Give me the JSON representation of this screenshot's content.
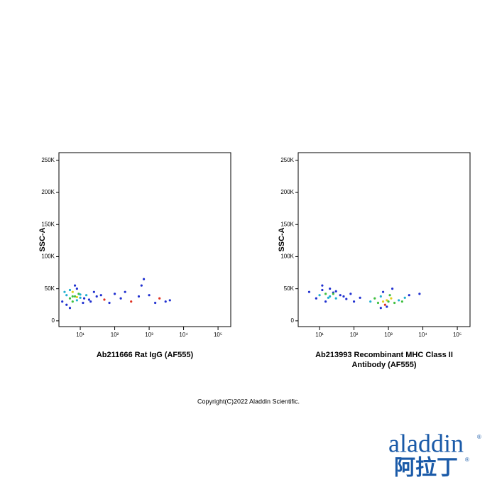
{
  "chart_data": [
    {
      "type": "scatter",
      "y_label": "SSC-A",
      "x_label": [
        "Ab211666 Rat IgG (AF555)"
      ],
      "log_x": true,
      "xlim": [
        2.4,
        234000
      ],
      "ylim": [
        -9000,
        262000
      ],
      "xticks": [
        {
          "value": 10,
          "label": "10¹"
        },
        {
          "value": 100,
          "label": "10²"
        },
        {
          "value": 1000,
          "label": "10³"
        },
        {
          "value": 10000,
          "label": "10⁴"
        },
        {
          "value": 100000,
          "label": "10⁵"
        }
      ],
      "yticks": [
        0,
        {
          "value": 50000,
          "label": "50K"
        },
        {
          "value": 100000,
          "label": "100K"
        },
        {
          "value": 150000,
          "label": "150K"
        },
        {
          "value": 200000,
          "label": "200K"
        },
        {
          "value": 250000,
          "label": "250K"
        }
      ],
      "x": [
        3,
        4,
        5,
        6,
        7,
        8,
        9,
        10,
        12,
        15,
        18,
        4,
        5,
        6,
        7,
        8,
        3.5,
        5,
        6,
        8,
        10,
        13,
        20,
        25,
        30,
        40,
        50,
        70,
        100,
        150,
        200,
        300,
        500,
        700,
        1000,
        1500,
        2000,
        3000,
        4000,
        600
      ],
      "y": [
        30000,
        40000,
        35000,
        45000,
        38000,
        32000,
        42000,
        36000,
        28000,
        40000,
        33000,
        25000,
        48000,
        30000,
        55000,
        37000,
        45000,
        20000,
        38000,
        50000,
        41000,
        35000,
        30000,
        45000,
        38000,
        40000,
        33000,
        28000,
        42000,
        35000,
        45000,
        30000,
        38000,
        65000,
        40000,
        28000,
        35000,
        30000,
        32000,
        55000
      ],
      "point_colors": [
        "#2030d0",
        "#20b0d0",
        "#40c040",
        "#e0d020",
        "#40c040",
        "#20b0d0",
        "#40c040",
        "#20b0d0",
        "#2030d0",
        "#20b0d0",
        "#2030d0",
        "#2030d0",
        "#20b0d0",
        "#40c040",
        "#2030d0",
        "#e0d020",
        "#20b0d0",
        "#2030d0",
        "#40c040",
        "#2030d0",
        "#20b0d0",
        "#2030d0",
        "#2030d0",
        "#2030d0",
        "#2030d0",
        "#2030d0",
        "#e03020",
        "#2030d0",
        "#2030d0",
        "#2030d0",
        "#2030d0",
        "#e03020",
        "#2030d0",
        "#2030d0",
        "#2030d0",
        "#2030d0",
        "#e03020",
        "#2030d0",
        "#2030d0",
        "#2030d0"
      ]
    },
    {
      "type": "scatter",
      "y_label": "SSC-A",
      "x_label": [
        "Ab213993 Recombinant MHC Class II",
        "Antibody (AF555)"
      ],
      "log_x": true,
      "xlim": [
        2.4,
        234000
      ],
      "ylim": [
        -9000,
        262000
      ],
      "xticks": [
        {
          "value": 10,
          "label": "10¹"
        },
        {
          "value": 100,
          "label": "10²"
        },
        {
          "value": 1000,
          "label": "10³"
        },
        {
          "value": 10000,
          "label": "10⁴"
        },
        {
          "value": 100000,
          "label": "10⁵"
        }
      ],
      "yticks": [
        0,
        {
          "value": 50000,
          "label": "50K"
        },
        {
          "value": 100000,
          "label": "100K"
        },
        {
          "value": 150000,
          "label": "150K"
        },
        {
          "value": 200000,
          "label": "200K"
        },
        {
          "value": 250000,
          "label": "250K"
        }
      ],
      "x": [
        5,
        8,
        10,
        12,
        15,
        20,
        25,
        30,
        40,
        15,
        20,
        25,
        18,
        12,
        30,
        50,
        60,
        80,
        100,
        150,
        300,
        400,
        500,
        600,
        700,
        800,
        900,
        1000,
        1200,
        1500,
        2000,
        2500,
        3000,
        700,
        900,
        1100,
        600,
        1300,
        4000,
        8000
      ],
      "y": [
        45000,
        35000,
        40000,
        48000,
        42000,
        38000,
        44000,
        35000,
        40000,
        30000,
        50000,
        42000,
        36000,
        55000,
        46000,
        38000,
        34000,
        42000,
        30000,
        36000,
        30000,
        35000,
        28000,
        38000,
        30000,
        25000,
        32000,
        30000,
        35000,
        28000,
        32000,
        30000,
        36000,
        45000,
        22000,
        40000,
        20000,
        50000,
        40000,
        42000
      ],
      "point_colors": [
        "#2030d0",
        "#2030d0",
        "#20b0d0",
        "#2030d0",
        "#40c040",
        "#20b0d0",
        "#2030d0",
        "#20b0d0",
        "#2030d0",
        "#2030d0",
        "#2030d0",
        "#40c040",
        "#20b0d0",
        "#2030d0",
        "#2030d0",
        "#2030d0",
        "#2030d0",
        "#2030d0",
        "#2030d0",
        "#2030d0",
        "#20b0d0",
        "#40c040",
        "#40c040",
        "#20b0d0",
        "#e0d020",
        "#e03020",
        "#e0d020",
        "#40c040",
        "#e0d020",
        "#40c040",
        "#20b0d0",
        "#40c040",
        "#20b0d0",
        "#2030d0",
        "#2030d0",
        "#40c040",
        "#2030d0",
        "#2030d0",
        "#2030d0",
        "#2030d0"
      ]
    }
  ],
  "footer": {
    "copyright": "Copyright(C)2022 Aladdin Scientific.",
    "logo": "aladdin",
    "logo_cn": "阿拉丁",
    "logo_mark": "®"
  }
}
